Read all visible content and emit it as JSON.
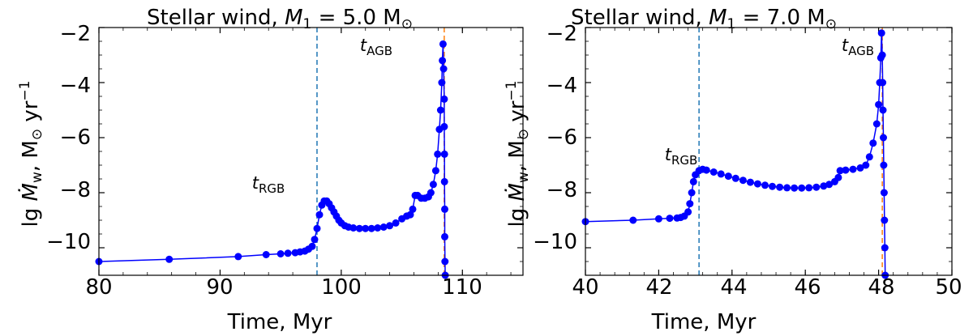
{
  "chart_data": [
    {
      "type": "scatter",
      "title_prefix": "Stellar wind, ",
      "title_symbol": "M",
      "title_subscript": "1",
      "title_suffix": " = 5.0 M",
      "title_unit_symbol": "⊙",
      "ylabel_prefix": "lg ",
      "ylabel_symbol": "Ṁ",
      "ylabel_subscript": "w",
      "ylabel_suffix": ", M",
      "ylabel_unit_symbol": "⊙",
      "ylabel_unit_tail": " yr",
      "ylabel_exponent": "−1",
      "xlabel": "Time, Myr",
      "xlim": [
        80,
        115
      ],
      "ylim": [
        -11,
        -2
      ],
      "xticks": [
        80,
        90,
        100,
        110
      ],
      "yticks": [
        -2,
        -4,
        -6,
        -8,
        -10
      ],
      "xtick_labels": [
        "80",
        "90",
        "100",
        "110"
      ],
      "ytick_labels": [
        "−2",
        "−4",
        "−6",
        "−8",
        "−10"
      ],
      "series_color": "#0000ff",
      "vlines": [
        {
          "x": 98.0,
          "color": "#1f77b4",
          "label_main": "t",
          "label_sub": "RGB",
          "label_y": -8.5
        },
        {
          "x": 108.5,
          "color": "#ff7f0e",
          "label_main": "t",
          "label_sub": "AGB",
          "label_y": -2.5
        }
      ],
      "points": [
        [
          80,
          -10.5
        ],
        [
          85.8,
          -10.42
        ],
        [
          91.5,
          -10.32
        ],
        [
          93.8,
          -10.25
        ],
        [
          95.0,
          -10.22
        ],
        [
          95.6,
          -10.2
        ],
        [
          96.2,
          -10.18
        ],
        [
          96.6,
          -10.15
        ],
        [
          97.0,
          -10.12
        ],
        [
          97.3,
          -10.05
        ],
        [
          97.6,
          -9.95
        ],
        [
          97.8,
          -9.7
        ],
        [
          98.0,
          -9.3
        ],
        [
          98.2,
          -8.8
        ],
        [
          98.4,
          -8.45
        ],
        [
          98.6,
          -8.3
        ],
        [
          98.8,
          -8.3
        ],
        [
          99.0,
          -8.4
        ],
        [
          99.2,
          -8.55
        ],
        [
          99.4,
          -8.7
        ],
        [
          99.6,
          -8.85
        ],
        [
          99.8,
          -9.0
        ],
        [
          100.0,
          -9.1
        ],
        [
          100.3,
          -9.2
        ],
        [
          100.6,
          -9.25
        ],
        [
          101.0,
          -9.28
        ],
        [
          101.5,
          -9.3
        ],
        [
          102.0,
          -9.3
        ],
        [
          102.5,
          -9.3
        ],
        [
          103.0,
          -9.28
        ],
        [
          103.5,
          -9.25
        ],
        [
          104.0,
          -9.2
        ],
        [
          104.5,
          -9.1
        ],
        [
          105.0,
          -8.95
        ],
        [
          105.4,
          -8.85
        ],
        [
          105.7,
          -8.8
        ],
        [
          105.9,
          -8.6
        ],
        [
          106.1,
          -8.1
        ],
        [
          106.3,
          -8.1
        ],
        [
          106.6,
          -8.2
        ],
        [
          106.9,
          -8.2
        ],
        [
          107.2,
          -8.15
        ],
        [
          107.4,
          -8.0
        ],
        [
          107.6,
          -7.7
        ],
        [
          107.8,
          -7.2
        ],
        [
          107.95,
          -6.6
        ],
        [
          108.1,
          -5.7
        ],
        [
          108.2,
          -5.0
        ],
        [
          108.3,
          -4.0
        ],
        [
          108.35,
          -3.2
        ],
        [
          108.4,
          -2.6
        ],
        [
          108.45,
          -3.5
        ],
        [
          108.5,
          -4.6
        ],
        [
          108.5,
          -5.6
        ],
        [
          108.52,
          -6.6
        ],
        [
          108.52,
          -7.6
        ],
        [
          108.54,
          -8.6
        ],
        [
          108.54,
          -9.6
        ],
        [
          108.56,
          -10.5
        ],
        [
          108.58,
          -11.0
        ]
      ]
    },
    {
      "type": "scatter",
      "title_prefix": "Stellar wind, ",
      "title_symbol": "M",
      "title_subscript": "1",
      "title_suffix": " = 7.0 M",
      "title_unit_symbol": "⊙",
      "ylabel_prefix": "lg ",
      "ylabel_symbol": "Ṁ",
      "ylabel_subscript": "w",
      "ylabel_suffix": ", M",
      "ylabel_unit_symbol": "⊙",
      "ylabel_unit_tail": " yr",
      "ylabel_exponent": "−1",
      "xlabel": "Time, Myr",
      "xlim": [
        40,
        50
      ],
      "ylim": [
        -11,
        -2
      ],
      "xticks": [
        40,
        42,
        44,
        46,
        48,
        50
      ],
      "yticks": [
        -2,
        -4,
        -6,
        -8,
        -10
      ],
      "xtick_labels": [
        "40",
        "42",
        "44",
        "46",
        "48",
        "50"
      ],
      "ytick_labels": [
        "−2",
        "−4",
        "−6",
        "−8",
        "−10"
      ],
      "series_color": "#0000ff",
      "vlines": [
        {
          "x": 43.1,
          "color": "#1f77b4",
          "label_main": "t",
          "label_sub": "RGB",
          "label_y": -7.0
        },
        {
          "x": 48.1,
          "color": "#ff7f0e",
          "label_main": "t",
          "label_sub": "AGB",
          "label_y": -2.5
        }
      ],
      "points": [
        [
          40,
          -9.05
        ],
        [
          41.3,
          -9.0
        ],
        [
          42.0,
          -8.95
        ],
        [
          42.3,
          -8.93
        ],
        [
          42.5,
          -8.92
        ],
        [
          42.6,
          -8.9
        ],
        [
          42.7,
          -8.85
        ],
        [
          42.8,
          -8.7
        ],
        [
          42.85,
          -8.4
        ],
        [
          42.9,
          -8.0
        ],
        [
          42.95,
          -7.6
        ],
        [
          43.0,
          -7.35
        ],
        [
          43.1,
          -7.2
        ],
        [
          43.2,
          -7.15
        ],
        [
          43.3,
          -7.18
        ],
        [
          43.5,
          -7.25
        ],
        [
          43.7,
          -7.32
        ],
        [
          43.9,
          -7.4
        ],
        [
          44.1,
          -7.48
        ],
        [
          44.3,
          -7.55
        ],
        [
          44.5,
          -7.62
        ],
        [
          44.7,
          -7.68
        ],
        [
          44.9,
          -7.73
        ],
        [
          45.1,
          -7.77
        ],
        [
          45.3,
          -7.8
        ],
        [
          45.5,
          -7.82
        ],
        [
          45.7,
          -7.83
        ],
        [
          45.9,
          -7.83
        ],
        [
          46.1,
          -7.82
        ],
        [
          46.3,
          -7.8
        ],
        [
          46.5,
          -7.76
        ],
        [
          46.65,
          -7.7
        ],
        [
          46.8,
          -7.6
        ],
        [
          46.9,
          -7.45
        ],
        [
          46.95,
          -7.2
        ],
        [
          47.1,
          -7.18
        ],
        [
          47.3,
          -7.15
        ],
        [
          47.5,
          -7.1
        ],
        [
          47.65,
          -7.0
        ],
        [
          47.75,
          -6.7
        ],
        [
          47.85,
          -6.2
        ],
        [
          47.95,
          -5.5
        ],
        [
          48.0,
          -4.8
        ],
        [
          48.03,
          -4.0
        ],
        [
          48.06,
          -3.1
        ],
        [
          48.08,
          -2.2
        ],
        [
          48.1,
          -3.0
        ],
        [
          48.11,
          -4.0
        ],
        [
          48.12,
          -5.0
        ],
        [
          48.13,
          -6.0
        ],
        [
          48.14,
          -7.0
        ],
        [
          48.15,
          -8.0
        ],
        [
          48.16,
          -9.0
        ],
        [
          48.17,
          -10.0
        ],
        [
          48.18,
          -11.0
        ]
      ]
    }
  ]
}
